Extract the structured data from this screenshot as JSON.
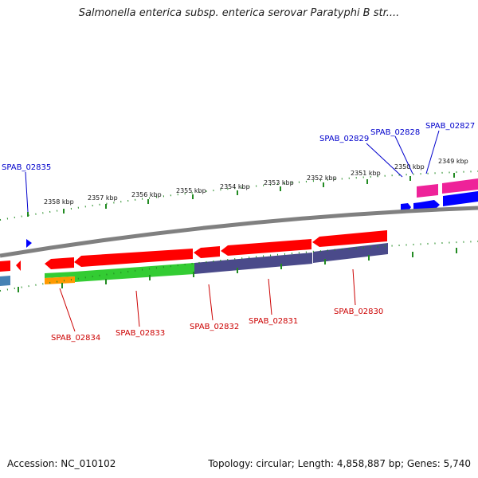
{
  "title": "Salmonella enterica subsp. enterica serovar Paratyphi B str....",
  "footer": {
    "accession": "Accession: NC_010102",
    "topology": "Topology: circular; Length: 4,858,887 bp; Genes: 5,740"
  },
  "kbp_labels": [
    "2358 kbp",
    "2357 kbp",
    "2356 kbp",
    "2355 kbp",
    "2354 kbp",
    "2353 kbp",
    "2352 kbp",
    "2351 kbp",
    "2350 kbp",
    "2349 kbp"
  ],
  "genes_top": [
    {
      "name": "SPAB_02835",
      "color": "#0000cc"
    },
    {
      "name": "SPAB_02829",
      "color": "#0000cc"
    },
    {
      "name": "SPAB_02828",
      "color": "#0000cc"
    },
    {
      "name": "SPAB_02827",
      "color": "#0000cc"
    }
  ],
  "genes_bottom": [
    {
      "name": "SPAB_02834",
      "color": "#cc0000"
    },
    {
      "name": "SPAB_02833",
      "color": "#cc0000"
    },
    {
      "name": "SPAB_02832",
      "color": "#cc0000"
    },
    {
      "name": "SPAB_02831",
      "color": "#cc0000"
    },
    {
      "name": "SPAB_02830",
      "color": "#cc0000"
    }
  ],
  "colors": {
    "forward_gene": "#0000ff",
    "reverse_gene": "#ff0000",
    "cog_green": "#33cc33",
    "cog_purple": "#4a4a8a",
    "cog_magenta": "#ee2299",
    "cog_orange": "#ff9900",
    "cog_steelblue": "#4682b4",
    "backbone": "#808080",
    "tick": "#228b22"
  }
}
